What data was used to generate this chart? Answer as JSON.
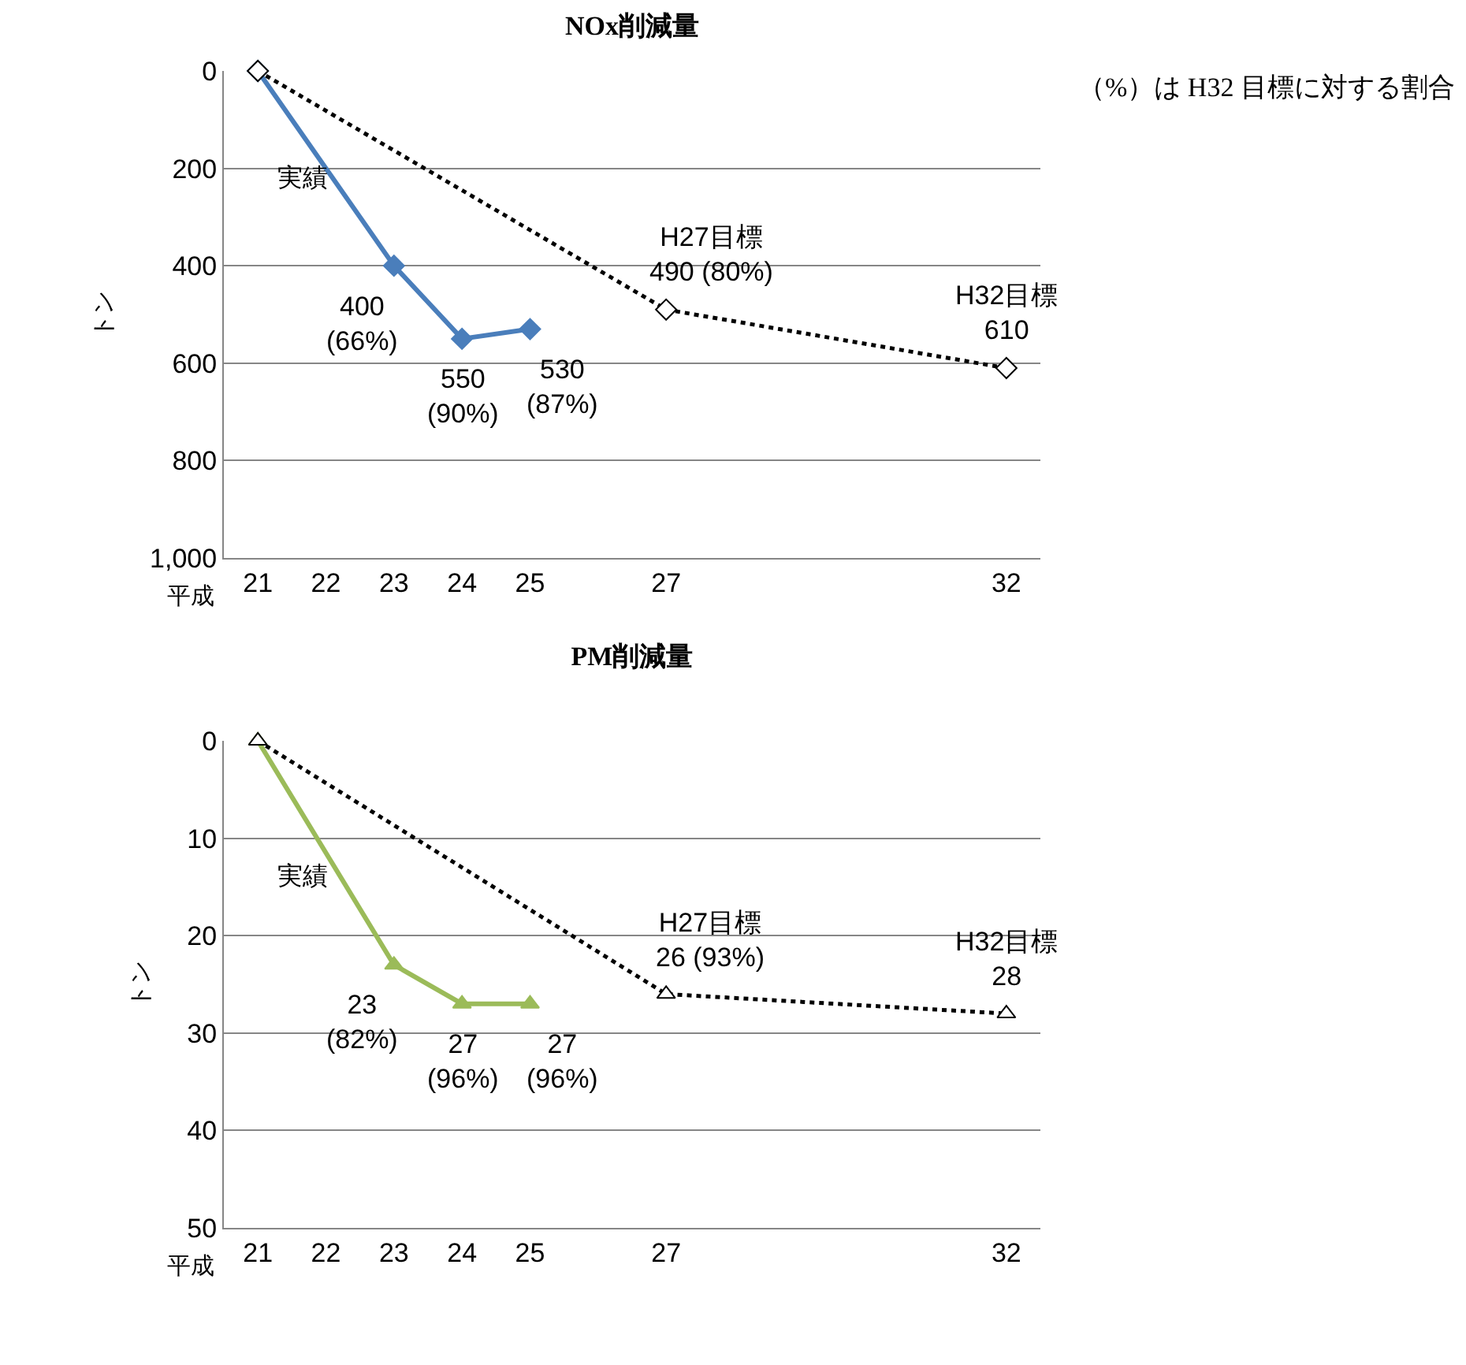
{
  "chart_data": [
    {
      "type": "line",
      "title": "NOx削減量",
      "xlabel": "平成",
      "ylabel": "トン",
      "xlim": [
        20.5,
        32.5
      ],
      "xticks": [
        21,
        22,
        23,
        24,
        25,
        27,
        32
      ],
      "ylim": [
        1000,
        0
      ],
      "yticks": [
        0,
        200,
        400,
        600,
        800,
        {
          "value": 1000,
          "label": "1,000"
        }
      ],
      "grid": "y",
      "legend": false,
      "series": [
        {
          "name": "実績",
          "color": "#4a7ebb",
          "marker": "diamond",
          "line_style": "solid",
          "x": [
            21,
            23,
            24,
            25
          ],
          "values": [
            0,
            400,
            550,
            530
          ],
          "value_labels": [
            null,
            "400 (66%)",
            "550 (90%)",
            "530 (87%)"
          ]
        },
        {
          "color": "#000000",
          "marker": "diamond",
          "line_style": "dotted",
          "x": [
            21,
            27,
            32
          ],
          "values": [
            0,
            490,
            610
          ],
          "value_labels": [
            null,
            "H27目標 490 (80%)",
            "H32目標 610"
          ]
        }
      ],
      "annotations": [
        "（%）は H32 目標に対する割合"
      ]
    },
    {
      "type": "line",
      "title": "PM削減量",
      "xlabel": "平成",
      "ylabel": "トン",
      "xlim": [
        20.5,
        32.5
      ],
      "xticks": [
        21,
        22,
        23,
        24,
        25,
        27,
        32
      ],
      "ylim": [
        50,
        0
      ],
      "yticks": [
        0,
        10,
        20,
        30,
        40,
        50
      ],
      "grid": "y",
      "legend": false,
      "series": [
        {
          "name": "実績",
          "color": "#9bbb59",
          "marker": "triangle",
          "line_style": "solid",
          "x": [
            21,
            23,
            24,
            25
          ],
          "values": [
            0,
            23,
            27,
            27
          ],
          "value_labels": [
            null,
            "23 (82%)",
            "27 (96%)",
            "27 (96%)"
          ]
        },
        {
          "color": "#000000",
          "marker": "triangle",
          "line_style": "dotted",
          "x": [
            21,
            27,
            32
          ],
          "values": [
            0,
            26,
            28
          ],
          "value_labels": [
            null,
            "H27目標 26 (93%)",
            "H32目標 28"
          ]
        }
      ]
    }
  ]
}
